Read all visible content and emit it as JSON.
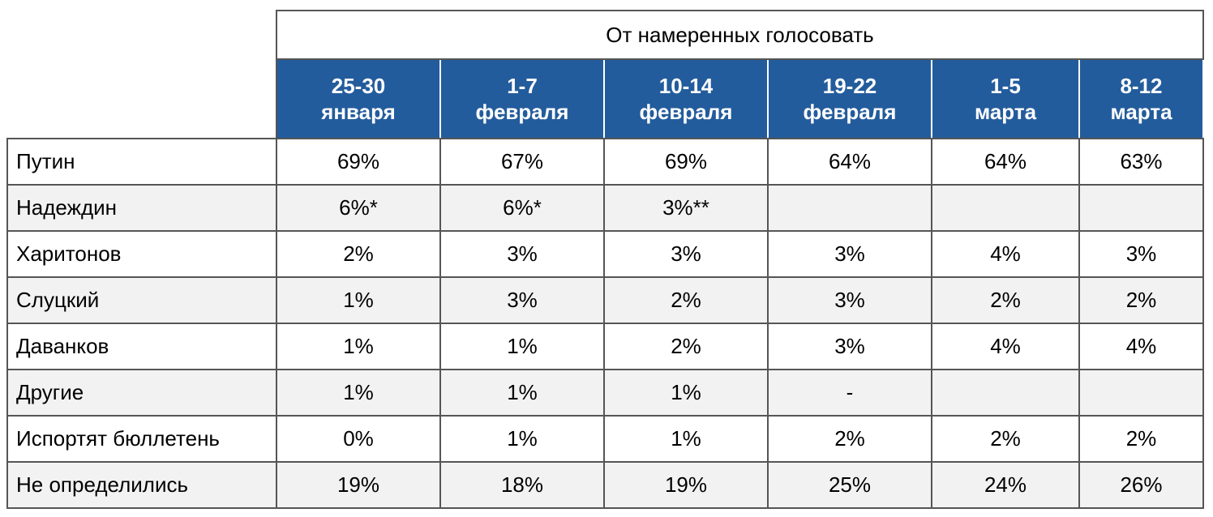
{
  "header": {
    "title": "От намеренных голосовать"
  },
  "table": {
    "columns": [
      [
        "25-30",
        "января"
      ],
      [
        "1-7",
        "февраля"
      ],
      [
        "10-14",
        "февраля"
      ],
      [
        "19-22",
        "февраля"
      ],
      [
        "1-5",
        "марта"
      ],
      [
        "8-12",
        "марта"
      ]
    ],
    "rows": [
      {
        "label": "Путин",
        "cells": [
          "69%",
          "67%",
          "69%",
          "64%",
          "64%",
          "63%"
        ]
      },
      {
        "label": "Надеждин",
        "cells": [
          "6%*",
          "6%*",
          "3%**",
          null,
          null,
          null
        ]
      },
      {
        "label": "Харитонов",
        "cells": [
          "2%",
          "3%",
          "3%",
          "3%",
          "4%",
          "3%"
        ]
      },
      {
        "label": "Слуцкий",
        "cells": [
          "1%",
          "3%",
          "2%",
          "3%",
          "2%",
          "2%"
        ]
      },
      {
        "label": "Даванков",
        "cells": [
          "1%",
          "1%",
          "2%",
          "3%",
          "4%",
          "4%"
        ]
      },
      {
        "label": "Другие",
        "cells": [
          "1%",
          "1%",
          "1%",
          "-",
          null,
          null
        ]
      },
      {
        "label": "Испортят бюллетень",
        "cells": [
          "0%",
          "1%",
          "1%",
          "2%",
          "2%",
          "2%"
        ]
      },
      {
        "label": "Не определились",
        "cells": [
          "19%",
          "18%",
          "19%",
          "25%",
          "24%",
          "26%"
        ]
      }
    ]
  }
}
